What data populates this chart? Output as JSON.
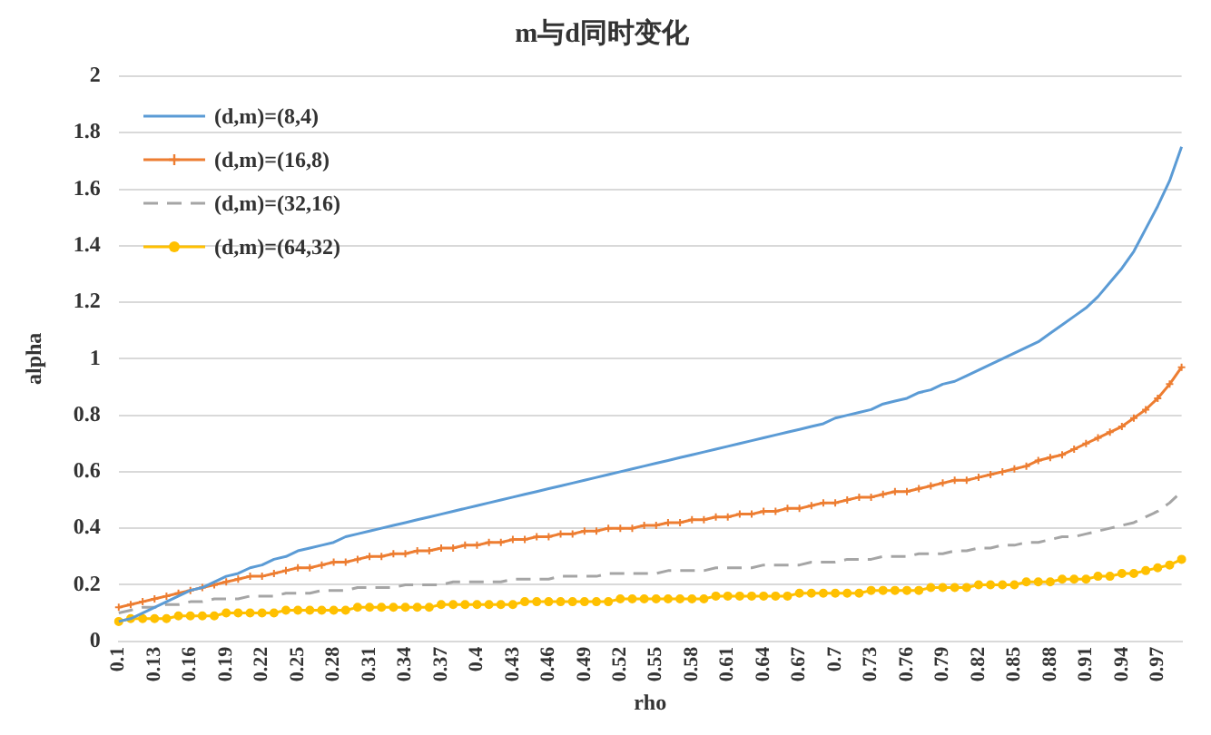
{
  "chart_data": {
    "type": "line",
    "title": "m与d同时变化",
    "xlabel": "rho",
    "ylabel": "alpha",
    "categories": [
      "0.1",
      null,
      null,
      "0.13",
      null,
      null,
      "0.16",
      null,
      null,
      "0.19",
      null,
      null,
      "0.22",
      null,
      null,
      "0.25",
      null,
      null,
      "0.28",
      null,
      null,
      "0.31",
      null,
      null,
      "0.34",
      null,
      null,
      "0.37",
      null,
      null,
      "0.4",
      null,
      null,
      "0.43",
      null,
      null,
      "0.46",
      null,
      null,
      "0.49",
      null,
      null,
      "0.52",
      null,
      null,
      "0.55",
      null,
      null,
      "0.58",
      null,
      null,
      "0.61",
      null,
      null,
      "0.64",
      null,
      null,
      "0.67",
      null,
      null,
      "0.7",
      null,
      null,
      "0.73",
      null,
      null,
      "0.76",
      null,
      null,
      "0.79",
      null,
      null,
      "0.82",
      null,
      null,
      "0.85",
      null,
      null,
      "0.88",
      null,
      null,
      "0.91",
      null,
      null,
      "0.94",
      null,
      null,
      "0.97",
      null,
      null
    ],
    "ylim": [
      0,
      2
    ],
    "yticks": [
      0,
      {
        "value": 0.2,
        "label": "0.2"
      },
      {
        "value": 0.4,
        "label": "0.4"
      },
      {
        "value": 0.6,
        "label": "0.6"
      },
      {
        "value": 0.8,
        "label": "0.8"
      },
      1,
      {
        "value": 1.2,
        "label": "1.2"
      },
      {
        "value": 1.4,
        "label": "1.4"
      },
      {
        "value": 1.6,
        "label": "1.6"
      },
      {
        "value": 1.8,
        "label": "1.8"
      },
      2
    ],
    "grid": "y",
    "legend": "top left",
    "series": [
      {
        "name": "(d,m)=(8,4)",
        "color": "#5b9bd5",
        "marker": "none",
        "line_style": "solid",
        "values": [
          0.07,
          0.08,
          0.1,
          0.12,
          0.14,
          0.16,
          0.18,
          0.19,
          0.21,
          0.23,
          0.24,
          0.26,
          0.27,
          0.29,
          0.3,
          0.32,
          0.33,
          0.34,
          0.35,
          0.37,
          0.38,
          0.39,
          0.4,
          0.41,
          0.42,
          0.43,
          0.44,
          0.45,
          0.46,
          0.47,
          0.48,
          0.49,
          0.5,
          0.51,
          0.52,
          0.53,
          0.54,
          0.55,
          0.56,
          0.57,
          0.58,
          0.59,
          0.6,
          0.61,
          0.62,
          0.63,
          0.64,
          0.65,
          0.66,
          0.67,
          0.68,
          0.69,
          0.7,
          0.71,
          0.72,
          0.73,
          0.74,
          0.75,
          0.76,
          0.77,
          0.79,
          0.8,
          0.81,
          0.82,
          0.84,
          0.85,
          0.86,
          0.88,
          0.89,
          0.91,
          0.92,
          0.94,
          0.96,
          0.98,
          1.0,
          1.02,
          1.04,
          1.06,
          1.09,
          1.12,
          1.15,
          1.18,
          1.22,
          1.27,
          1.32,
          1.38,
          1.46,
          1.54,
          1.63,
          1.75
        ]
      },
      {
        "name": "(d,m)=(16,8)",
        "color": "#ed7d31",
        "marker": "cross",
        "line_style": "solid",
        "values": [
          0.12,
          0.13,
          0.14,
          0.15,
          0.16,
          0.17,
          0.18,
          0.19,
          0.2,
          0.21,
          0.22,
          0.23,
          0.23,
          0.24,
          0.25,
          0.26,
          0.26,
          0.27,
          0.28,
          0.28,
          0.29,
          0.3,
          0.3,
          0.31,
          0.31,
          0.32,
          0.32,
          0.33,
          0.33,
          0.34,
          0.34,
          0.35,
          0.35,
          0.36,
          0.36,
          0.37,
          0.37,
          0.38,
          0.38,
          0.39,
          0.39,
          0.4,
          0.4,
          0.4,
          0.41,
          0.41,
          0.42,
          0.42,
          0.43,
          0.43,
          0.44,
          0.44,
          0.45,
          0.45,
          0.46,
          0.46,
          0.47,
          0.47,
          0.48,
          0.49,
          0.49,
          0.5,
          0.51,
          0.51,
          0.52,
          0.53,
          0.53,
          0.54,
          0.55,
          0.56,
          0.57,
          0.57,
          0.58,
          0.59,
          0.6,
          0.61,
          0.62,
          0.64,
          0.65,
          0.66,
          0.68,
          0.7,
          0.72,
          0.74,
          0.76,
          0.79,
          0.82,
          0.86,
          0.91,
          0.97
        ]
      },
      {
        "name": "(d,m)=(32,16)",
        "color": "#a5a5a5",
        "marker": "none",
        "line_style": "dashed",
        "values": [
          0.1,
          0.11,
          0.12,
          0.12,
          0.13,
          0.13,
          0.14,
          0.14,
          0.15,
          0.15,
          0.15,
          0.16,
          0.16,
          0.16,
          0.17,
          0.17,
          0.17,
          0.18,
          0.18,
          0.18,
          0.19,
          0.19,
          0.19,
          0.19,
          0.2,
          0.2,
          0.2,
          0.2,
          0.21,
          0.21,
          0.21,
          0.21,
          0.21,
          0.22,
          0.22,
          0.22,
          0.22,
          0.23,
          0.23,
          0.23,
          0.23,
          0.24,
          0.24,
          0.24,
          0.24,
          0.24,
          0.25,
          0.25,
          0.25,
          0.25,
          0.26,
          0.26,
          0.26,
          0.26,
          0.27,
          0.27,
          0.27,
          0.27,
          0.28,
          0.28,
          0.28,
          0.29,
          0.29,
          0.29,
          0.3,
          0.3,
          0.3,
          0.31,
          0.31,
          0.31,
          0.32,
          0.32,
          0.33,
          0.33,
          0.34,
          0.34,
          0.35,
          0.35,
          0.36,
          0.37,
          0.37,
          0.38,
          0.39,
          0.4,
          0.41,
          0.42,
          0.44,
          0.46,
          0.49,
          0.53
        ]
      },
      {
        "name": "(d,m)=(64,32)",
        "color": "#ffc000",
        "marker": "circle",
        "line_style": "solid",
        "values": [
          0.07,
          0.08,
          0.08,
          0.08,
          0.08,
          0.09,
          0.09,
          0.09,
          0.09,
          0.1,
          0.1,
          0.1,
          0.1,
          0.1,
          0.11,
          0.11,
          0.11,
          0.11,
          0.11,
          0.11,
          0.12,
          0.12,
          0.12,
          0.12,
          0.12,
          0.12,
          0.12,
          0.13,
          0.13,
          0.13,
          0.13,
          0.13,
          0.13,
          0.13,
          0.14,
          0.14,
          0.14,
          0.14,
          0.14,
          0.14,
          0.14,
          0.14,
          0.15,
          0.15,
          0.15,
          0.15,
          0.15,
          0.15,
          0.15,
          0.15,
          0.16,
          0.16,
          0.16,
          0.16,
          0.16,
          0.16,
          0.16,
          0.17,
          0.17,
          0.17,
          0.17,
          0.17,
          0.17,
          0.18,
          0.18,
          0.18,
          0.18,
          0.18,
          0.19,
          0.19,
          0.19,
          0.19,
          0.2,
          0.2,
          0.2,
          0.2,
          0.21,
          0.21,
          0.21,
          0.22,
          0.22,
          0.22,
          0.23,
          0.23,
          0.24,
          0.24,
          0.25,
          0.26,
          0.27,
          0.29
        ]
      }
    ]
  }
}
